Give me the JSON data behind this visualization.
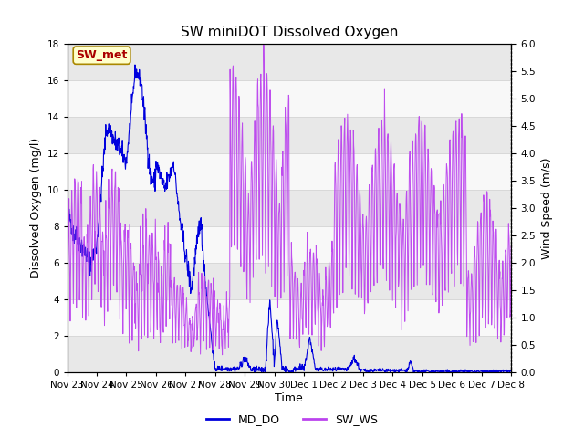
{
  "title": "SW miniDOT Dissolved Oxygen",
  "ylabel_left": "Dissolved Oxygen (mg/l)",
  "ylabel_right": "Wind Speed (m/s)",
  "xlabel": "Time",
  "ylim_left": [
    0,
    18
  ],
  "ylim_right": [
    0,
    6
  ],
  "yticks_left": [
    0,
    2,
    4,
    6,
    8,
    10,
    12,
    14,
    16,
    18
  ],
  "yticks_right": [
    0.0,
    0.5,
    1.0,
    1.5,
    2.0,
    2.5,
    3.0,
    3.5,
    4.0,
    4.5,
    5.0,
    5.5,
    6.0
  ],
  "xtick_labels": [
    "Nov 23",
    "Nov 24",
    "Nov 25",
    "Nov 26",
    "Nov 27",
    "Nov 28",
    "Nov 29",
    "Nov 30",
    "Dec 1",
    "Dec 2",
    "Dec 3",
    "Dec 4",
    "Dec 5",
    "Dec 6",
    "Dec 7",
    "Dec 8"
  ],
  "md_do_color": "#0000dd",
  "sw_ws_color": "#bb44ee",
  "legend_md_do": "MD_DO",
  "legend_sw_ws": "SW_WS",
  "annotation_text": "SW_met",
  "annotation_color": "#aa0000",
  "annotation_bg": "#ffffcc",
  "annotation_border": "#aa8800",
  "grid_color": "#d8d8d8",
  "bg_stripe_color": "#e8e8e8",
  "bg_white_color": "#f8f8f8",
  "title_fontsize": 11,
  "axis_fontsize": 9,
  "tick_fontsize": 7.5,
  "legend_fontsize": 9,
  "annotation_fontsize": 9
}
